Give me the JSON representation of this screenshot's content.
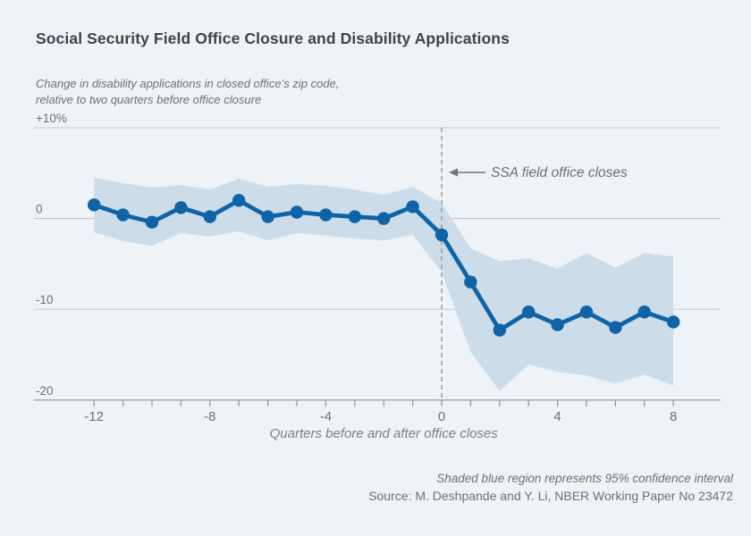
{
  "page": {
    "background": "#eef3f7",
    "title": "Social Security Field Office Closure and Disability Applications",
    "subtitle_line1": "Change in disability applications in closed office’s zip code,",
    "subtitle_line2": "relative to two quarters before office closure",
    "footnote": "Shaded blue region represents 95% confidence interval",
    "source": "Source: M. Deshpande and Y. Li, NBER Working Paper No 23472"
  },
  "chart_data": {
    "type": "line",
    "title": "Social Security Field Office Closure and Disability Applications",
    "xlabel": "Quarters before and after office closes",
    "ylabel_line1": "Change in disability applications in closed office’s zip code,",
    "ylabel_line2": "relative to two quarters before office closure",
    "xlim": [
      -12,
      8
    ],
    "ylim": [
      -20,
      10
    ],
    "grid": "horizontal",
    "legend_position": "none",
    "x": [
      -12,
      -11,
      -10,
      -9,
      -8,
      -7,
      -6,
      -5,
      -4,
      -3,
      -2,
      -1,
      0,
      1,
      2,
      3,
      4,
      5,
      6,
      7,
      8
    ],
    "series": [
      {
        "name": "Change in disability applications (%)",
        "values": [
          1.5,
          0.4,
          -0.4,
          1.2,
          0.2,
          2.0,
          0.2,
          0.7,
          0.4,
          0.2,
          0.0,
          1.3,
          -1.8,
          -7.0,
          -12.3,
          -10.3,
          -11.7,
          -10.3,
          -12.0,
          -10.3,
          -11.4
        ]
      }
    ],
    "ci_upper": [
      4.5,
      3.9,
      3.4,
      3.7,
      3.2,
      4.4,
      3.5,
      3.8,
      3.6,
      3.2,
      2.6,
      3.5,
      1.7,
      -3.3,
      -4.7,
      -4.4,
      -5.5,
      -3.8,
      -5.4,
      -3.8,
      -4.2
    ],
    "ci_lower": [
      -1.5,
      -2.5,
      -3.0,
      -1.6,
      -2.0,
      -1.4,
      -2.4,
      -1.6,
      -1.9,
      -2.2,
      -2.4,
      -1.8,
      -5.9,
      -14.7,
      -19.0,
      -16.1,
      -16.9,
      -17.3,
      -18.2,
      -17.2,
      -18.4
    ],
    "ci_note": "Shaded blue region represents 95% confidence interval",
    "annotation": {
      "text": "SSA field office closes",
      "at_x": 0
    },
    "yticks": [
      {
        "label": "+10%",
        "value": 10
      },
      {
        "label": "0",
        "value": 0
      },
      {
        "label": "-10",
        "value": -10
      },
      {
        "label": "-20",
        "value": -20
      }
    ],
    "xticks": [
      {
        "label": "-12",
        "value": -12
      },
      {
        "label": "-8",
        "value": -8
      },
      {
        "label": "-4",
        "value": -4
      },
      {
        "label": "0",
        "value": 0
      },
      {
        "label": "4",
        "value": 4
      },
      {
        "label": "8",
        "value": 8
      }
    ],
    "colors": {
      "background": "#eef3f7",
      "line": "#0f64a8",
      "band": "#cddce9",
      "grid": "#c7ccd1",
      "zero_grid": "#b9bec3",
      "axis": "#8e949a",
      "dashed": "#8e949a",
      "arrow": "#6f757b",
      "text": "#6b7178",
      "title": "#3e444a"
    }
  }
}
